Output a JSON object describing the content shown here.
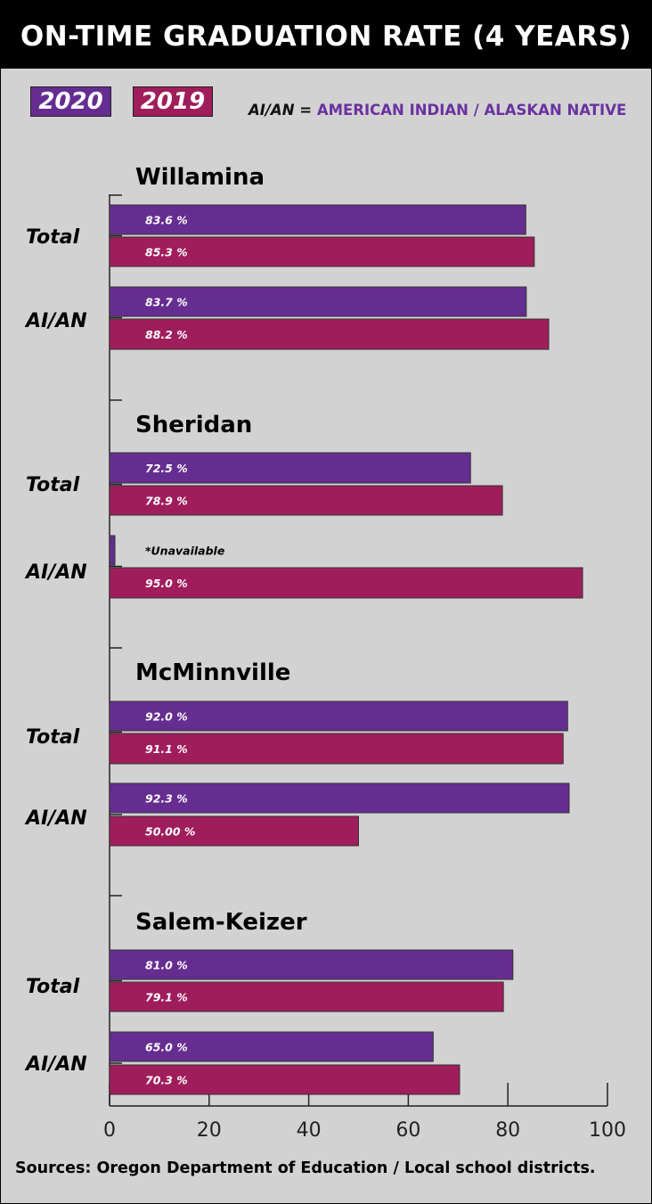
{
  "title": "ON-TIME GRADUATION RATE (4 YEARS)",
  "legend": [
    {
      "label": "2020",
      "color": "#662d91"
    },
    {
      "label": "2019",
      "color": "#a01d5c"
    }
  ],
  "abbreviation_note": {
    "key": "AI/AN",
    "equals": "=",
    "definition": "AMERICAN INDIAN / ALASKAN NATIVE"
  },
  "sources": "Sources: Oregon Department of Education / Local school districts.",
  "colors": {
    "2020": "#662d91",
    "2019": "#a01d5c",
    "background": "#d2d2d3"
  },
  "chart_data": {
    "type": "bar",
    "orientation": "horizontal",
    "xlim": [
      0,
      100
    ],
    "x_ticks": [
      "0",
      "20",
      "40",
      "60",
      "80",
      "100"
    ],
    "grid": false,
    "legend_placement": "top-left",
    "groups": [
      {
        "name": "Willamina",
        "categories": [
          {
            "label": "Total",
            "bars": [
              {
                "series": "2020",
                "value": 83.6,
                "label": "83.6 %"
              },
              {
                "series": "2019",
                "value": 85.3,
                "label": "85.3 %"
              }
            ]
          },
          {
            "label": "AI/AN",
            "bars": [
              {
                "series": "2020",
                "value": 83.7,
                "label": "83.7 %"
              },
              {
                "series": "2019",
                "value": 88.2,
                "label": "88.2 %"
              }
            ]
          }
        ]
      },
      {
        "name": "Sheridan",
        "categories": [
          {
            "label": "Total",
            "bars": [
              {
                "series": "2020",
                "value": 72.5,
                "label": "72.5 %"
              },
              {
                "series": "2019",
                "value": 78.9,
                "label": "78.9 %"
              }
            ]
          },
          {
            "label": "AI/AN",
            "bars": [
              {
                "series": "2020",
                "value": null,
                "label": "*Unavailable"
              },
              {
                "series": "2019",
                "value": 95.0,
                "label": "95.0 %"
              }
            ]
          }
        ]
      },
      {
        "name": "McMinnville",
        "categories": [
          {
            "label": "Total",
            "bars": [
              {
                "series": "2020",
                "value": 92.0,
                "label": "92.0 %"
              },
              {
                "series": "2019",
                "value": 91.1,
                "label": "91.1 %"
              }
            ]
          },
          {
            "label": "AI/AN",
            "bars": [
              {
                "series": "2020",
                "value": 92.3,
                "label": "92.3 %"
              },
              {
                "series": "2019",
                "value": 50.0,
                "label": "50.00 %"
              }
            ]
          }
        ]
      },
      {
        "name": "Salem-Keizer",
        "categories": [
          {
            "label": "Total",
            "bars": [
              {
                "series": "2020",
                "value": 81.0,
                "label": "81.0 %"
              },
              {
                "series": "2019",
                "value": 79.1,
                "label": "79.1 %"
              }
            ]
          },
          {
            "label": "AI/AN",
            "bars": [
              {
                "series": "2020",
                "value": 65.0,
                "label": "65.0 %"
              },
              {
                "series": "2019",
                "value": 70.3,
                "label": "70.3 %"
              }
            ]
          }
        ]
      }
    ]
  }
}
